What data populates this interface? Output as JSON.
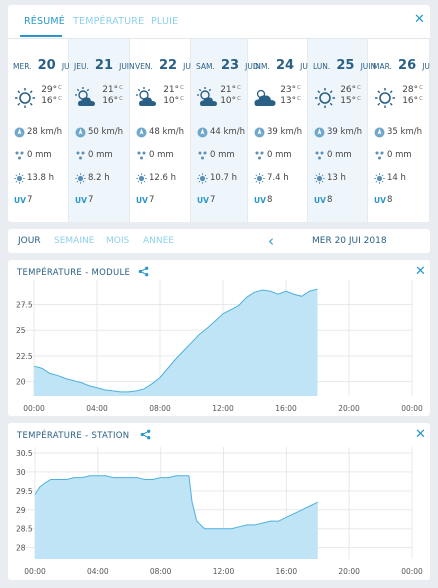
{
  "forecast": {
    "tabs": [
      "RÉSUMÉ",
      "TEMPÉRATURE",
      "PLUIE"
    ],
    "days": [
      {
        "dow": "MER.",
        "num": "20",
        "mon": "JUIN",
        "icon": "sun-icon",
        "tmax": "29°",
        "tmin": "16°",
        "wind": "28 km/h",
        "rain": "0 mm",
        "sun": "13.8 h",
        "uv": "7",
        "uv_label": "UV"
      },
      {
        "dow": "JEU.",
        "num": "21",
        "mon": "JUIN",
        "icon": "sun-cloud-icon",
        "tmax": "21°",
        "tmin": "16°",
        "wind": "50 km/h",
        "rain": "0 mm",
        "sun": "8.2 h",
        "uv": "7",
        "uv_label": "UV"
      },
      {
        "dow": "VEN.",
        "num": "22",
        "mon": "JUIN",
        "icon": "sun-cloud-icon",
        "tmax": "21°",
        "tmin": "10°",
        "wind": "48 km/h",
        "rain": "0 mm",
        "sun": "12.6 h",
        "uv": "7",
        "uv_label": "UV"
      },
      {
        "dow": "SAM.",
        "num": "23",
        "mon": "JUIN",
        "icon": "sun-cloud-icon",
        "tmax": "21°",
        "tmin": "10°",
        "wind": "44 km/h",
        "rain": "0 mm",
        "sun": "10.7 h",
        "uv": "7",
        "uv_label": "UV"
      },
      {
        "dow": "DIM.",
        "num": "24",
        "mon": "JUIN",
        "icon": "cloud-sun-icon",
        "tmax": "23°",
        "tmin": "13°",
        "wind": "39 km/h",
        "rain": "0 mm",
        "sun": "7.4 h",
        "uv": "8",
        "uv_label": "UV"
      },
      {
        "dow": "LUN.",
        "num": "25",
        "mon": "JUIN",
        "icon": "sun-icon",
        "tmax": "26°",
        "tmin": "15°",
        "wind": "39 km/h",
        "rain": "0 mm",
        "sun": "13 h",
        "uv": "8",
        "uv_label": "UV"
      },
      {
        "dow": "MAR.",
        "num": "26",
        "mon": "JUIN",
        "icon": "sun-icon",
        "tmax": "28°",
        "tmin": "16°",
        "wind": "35 km/h",
        "rain": "0 mm",
        "sun": "14 h",
        "uv": "8",
        "uv_label": "UV"
      }
    ],
    "temp_unit": "C",
    "close_label": "✕"
  },
  "period": {
    "tabs": [
      "JOUR",
      "SEMAINE",
      "MOIS",
      "ANNEE"
    ],
    "prev_label": "‹",
    "date": "MER 20 JUI 2018"
  },
  "charts": [
    {
      "title": "TEMPÉRATURE -   MODULE",
      "close_label": "✕",
      "chart_data": {
        "type": "area",
        "x_ticks": [
          "00:00",
          "04:00",
          "08:00",
          "12:00",
          "16:00",
          "20:00",
          "00:00"
        ],
        "y_ticks": [
          "27.5",
          "25",
          "22.5",
          "20"
        ],
        "ylim": [
          18.6,
          29.3
        ],
        "x_hours": [
          0,
          0.5,
          1,
          1.5,
          2,
          2.5,
          3,
          3.5,
          4,
          4.5,
          5,
          5.5,
          6,
          6.5,
          7,
          7.5,
          8,
          8.5,
          9,
          9.5,
          10,
          10.5,
          11,
          11.5,
          12,
          12.5,
          13,
          13.5,
          14,
          14.5,
          15,
          15.5,
          16,
          16.5,
          17,
          17.5,
          18
        ],
        "values": [
          21.5,
          21.3,
          20.8,
          20.6,
          20.3,
          20.1,
          19.9,
          19.6,
          19.4,
          19.2,
          19.1,
          19.0,
          19.0,
          19.1,
          19.3,
          19.8,
          20.4,
          21.3,
          22.2,
          23.0,
          23.8,
          24.6,
          25.2,
          25.9,
          26.6,
          27.0,
          27.4,
          28.2,
          28.7,
          28.9,
          28.8,
          28.5,
          28.8,
          28.5,
          28.3,
          28.8,
          29.0
        ],
        "grid": true,
        "color": "#bfe4f5",
        "line_color": "#4fb1de"
      }
    },
    {
      "title": "TEMPÉRATURE -   STATION",
      "close_label": "✕",
      "chart_data": {
        "type": "area",
        "x_ticks": [
          "00:00",
          "04:00",
          "08:00",
          "12:00",
          "16:00",
          "20:00",
          "00:00"
        ],
        "y_ticks": [
          "30.5",
          "30",
          "29.5",
          "29",
          "28.5",
          "28"
        ],
        "ylim": [
          27.7,
          30.5
        ],
        "x_hours": [
          0,
          0.3,
          0.6,
          1,
          1.5,
          2,
          2.5,
          3,
          3.5,
          4,
          4.5,
          5,
          5.5,
          6,
          6.5,
          7,
          7.5,
          8,
          8.5,
          9,
          9.5,
          9.8,
          10,
          10.3,
          10.8,
          11.5,
          12,
          12.5,
          13,
          13.5,
          14,
          14.5,
          15,
          15.5,
          16,
          16.5,
          17,
          17.5,
          18
        ],
        "values": [
          29.4,
          29.6,
          29.7,
          29.8,
          29.8,
          29.8,
          29.85,
          29.85,
          29.9,
          29.9,
          29.9,
          29.85,
          29.85,
          29.85,
          29.85,
          29.8,
          29.8,
          29.85,
          29.85,
          29.9,
          29.9,
          29.9,
          29.2,
          28.7,
          28.5,
          28.5,
          28.5,
          28.5,
          28.55,
          28.6,
          28.6,
          28.65,
          28.7,
          28.7,
          28.8,
          28.9,
          29.0,
          29.1,
          29.2
        ],
        "grid": true,
        "color": "#bfe4f5",
        "line_color": "#4fb1de"
      }
    }
  ]
}
